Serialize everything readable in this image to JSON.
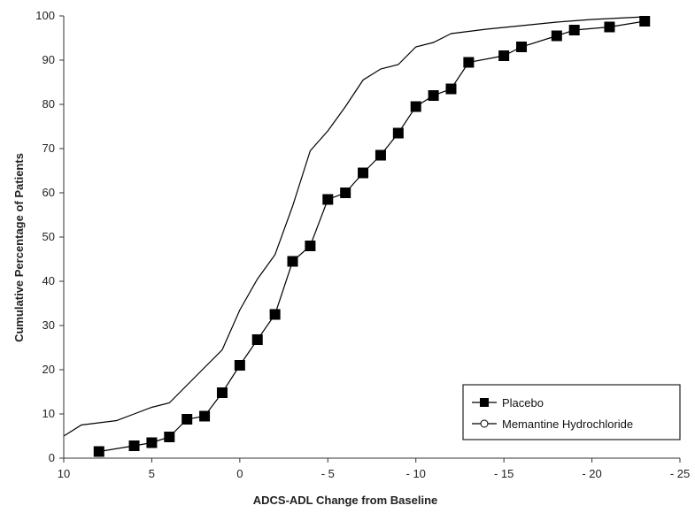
{
  "chart_data": {
    "type": "line",
    "title": "",
    "xlabel": "ADCS-ADL Change from Baseline",
    "ylabel": "Cumulative Percentage of Patients",
    "xlim": [
      10,
      -25
    ],
    "ylim": [
      0,
      100
    ],
    "xticks": [
      10,
      5,
      0,
      -5,
      -10,
      -15,
      -20,
      -25
    ],
    "xtick_labels": [
      "10",
      "5",
      "0",
      "- 5",
      "- 10",
      "- 15",
      "- 20",
      "- 25"
    ],
    "yticks": [
      0,
      10,
      20,
      30,
      40,
      50,
      60,
      70,
      80,
      90,
      100
    ],
    "grid": false,
    "legend_position": "bottom-right",
    "series": [
      {
        "name": "Placebo",
        "marker": "filled-square",
        "color": "#000000",
        "points": [
          [
            8,
            1.5
          ],
          [
            6,
            2.8
          ],
          [
            5,
            3.5
          ],
          [
            4,
            4.8
          ],
          [
            3,
            8.8
          ],
          [
            2,
            9.5
          ],
          [
            1,
            14.8
          ],
          [
            0,
            21
          ],
          [
            -1,
            26.8
          ],
          [
            -2,
            32.5
          ],
          [
            -3,
            44.5
          ],
          [
            -4,
            48
          ],
          [
            -5,
            58.5
          ],
          [
            -6,
            60
          ],
          [
            -7,
            64.5
          ],
          [
            -8,
            68.5
          ],
          [
            -9,
            73.5
          ],
          [
            -10,
            79.5
          ],
          [
            -11,
            82
          ],
          [
            -12,
            83.5
          ],
          [
            -13,
            89.5
          ],
          [
            -15,
            91
          ],
          [
            -16,
            93
          ],
          [
            -18,
            95.5
          ],
          [
            -19,
            96.8
          ],
          [
            -21,
            97.5
          ],
          [
            -23,
            98.8
          ]
        ]
      },
      {
        "name": "Memantine Hydrochloride",
        "marker": "open-circle",
        "color": "#000000",
        "points": [
          [
            10,
            5
          ],
          [
            9,
            7.5
          ],
          [
            8,
            8
          ],
          [
            7,
            8.5
          ],
          [
            6,
            10
          ],
          [
            5,
            11.5
          ],
          [
            4,
            12.5
          ],
          [
            3,
            16.5
          ],
          [
            2,
            20.5
          ],
          [
            1,
            24.5
          ],
          [
            0,
            33.5
          ],
          [
            -1,
            40.5
          ],
          [
            -2,
            46
          ],
          [
            -3,
            57
          ],
          [
            -4,
            69.5
          ],
          [
            -5,
            74
          ],
          [
            -6,
            79.5
          ],
          [
            -7,
            85.5
          ],
          [
            -8,
            88
          ],
          [
            -9,
            89
          ],
          [
            -10,
            93
          ],
          [
            -11,
            94
          ],
          [
            -12,
            96
          ],
          [
            -14,
            97
          ],
          [
            -16,
            97.8
          ],
          [
            -18,
            98.6
          ],
          [
            -20,
            99.2
          ],
          [
            -23,
            99.8
          ]
        ]
      }
    ]
  }
}
